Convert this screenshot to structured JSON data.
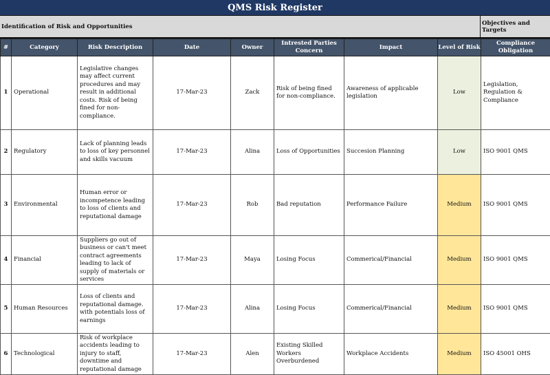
{
  "title": "QMS Risk Register",
  "sections": {
    "left": "Identification of Risk and Opportunities",
    "right": "Objectives and Targets"
  },
  "columns": [
    "#",
    "Category",
    "Risk Description",
    "Date",
    "Owner",
    "Intrested Parties Concern",
    "Impact",
    "Level of Risk",
    "Compliance Obligation"
  ],
  "colors": {
    "title_bg": "#203864",
    "header_bg": "#44546a",
    "section_bg": "#d9d9d9",
    "low": "#ebf1de",
    "medium": "#ffe699"
  },
  "rows": [
    {
      "num": "1",
      "category": "Operational",
      "description": "Legislative changes may affect current procedures and may result in additional costs. Risk of being fined for non-compliance.",
      "date": "17-Mar-23",
      "owner": "Zack",
      "concern": "Risk of being fined for non-compliance.",
      "impact": "Awareness of applicable legislation",
      "level": "Low",
      "compliance": "Legislation, Regulation & Compliance"
    },
    {
      "num": "2",
      "category": "Regulatory",
      "description": "Lack of planning leads to loss of key personnel and skills vacuum",
      "date": "17-Mar-23",
      "owner": "Alina",
      "concern": "Loss of Opportunities",
      "impact": "Succesion Planning",
      "level": "Low",
      "compliance": "ISO 9001 QMS"
    },
    {
      "num": "3",
      "category": "Environmental",
      "description": "Human error or incompetence leading to loss of clients and reputational damage",
      "date": "17-Mar-23",
      "owner": "Rob",
      "concern": "Bad reputation",
      "impact": "Performance Failure",
      "level": "Medium",
      "compliance": "ISO 9001 QMS"
    },
    {
      "num": "4",
      "category": "Financial",
      "description": "Suppliers go out of business or can't meet contract agreements leading to lack of supply of materials or services",
      "date": "17-Mar-23",
      "owner": "Maya",
      "concern": "Losing Focus",
      "impact": "Commerical/Financial",
      "level": "Medium",
      "compliance": "ISO 9001 QMS"
    },
    {
      "num": "5",
      "category": "Human Resources",
      "description": "Loss of clients and reputational damage. with potentials loss of earnings",
      "date": "17-Mar-23",
      "owner": "Alina",
      "concern": "Losing Focus",
      "impact": "Commerical/Financial",
      "level": "Medium",
      "compliance": "ISO 9001 QMS"
    },
    {
      "num": "6",
      "category": "Technological",
      "description": "Risk of workplace accidents leading to injury to staff, downtime and reputational damage",
      "date": "17-Mar-23",
      "owner": "Alen",
      "concern": "Existing Skilled Workers Overburdened",
      "impact": "Workplace Accidents",
      "level": "Medium",
      "compliance": "ISO 45001 OHS"
    }
  ]
}
